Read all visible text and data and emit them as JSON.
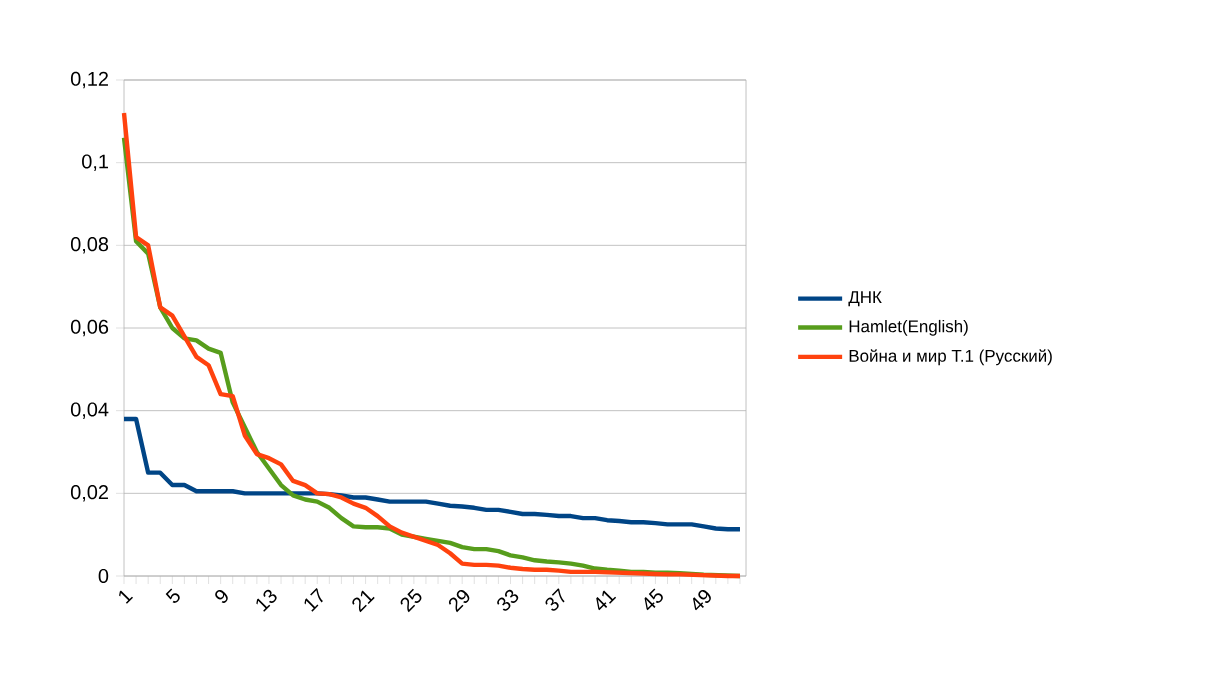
{
  "chart_data": {
    "type": "line",
    "categories": [
      "1",
      null,
      null,
      null,
      "5",
      null,
      null,
      null,
      "9",
      null,
      null,
      null,
      "13",
      null,
      null,
      null,
      "17",
      null,
      null,
      null,
      "21",
      null,
      null,
      null,
      "25",
      null,
      null,
      null,
      "29",
      null,
      null,
      null,
      "33",
      null,
      null,
      null,
      "37",
      null,
      null,
      null,
      "41",
      null,
      null,
      null,
      "45",
      null,
      null,
      null,
      "49",
      null,
      null,
      null
    ],
    "series": [
      {
        "name": "ДНК",
        "color": "#004586",
        "values": [
          0.038,
          0.038,
          0.025,
          0.025,
          0.022,
          0.022,
          0.0205,
          0.0205,
          0.0205,
          0.0205,
          0.02,
          0.02,
          0.02,
          0.02,
          0.02,
          0.02,
          0.02,
          0.0198,
          0.0195,
          0.019,
          0.019,
          0.0185,
          0.018,
          0.018,
          0.018,
          0.018,
          0.0175,
          0.017,
          0.0168,
          0.0165,
          0.016,
          0.016,
          0.0155,
          0.015,
          0.015,
          0.0148,
          0.0145,
          0.0145,
          0.014,
          0.014,
          0.0135,
          0.0133,
          0.013,
          0.013,
          0.0128,
          0.0125,
          0.0125,
          0.0125,
          0.012,
          0.0115,
          0.0113,
          0.0113
        ]
      },
      {
        "name": "Hamlet(English)",
        "color": "#579d1c",
        "values": [
          0.106,
          0.081,
          0.078,
          0.065,
          0.06,
          0.0575,
          0.057,
          0.055,
          0.054,
          0.042,
          0.036,
          0.03,
          0.026,
          0.022,
          0.0195,
          0.0185,
          0.018,
          0.0165,
          0.014,
          0.012,
          0.0118,
          0.0118,
          0.0115,
          0.01,
          0.0095,
          0.009,
          0.0085,
          0.008,
          0.007,
          0.0065,
          0.0065,
          0.006,
          0.005,
          0.0045,
          0.0038,
          0.0035,
          0.0033,
          0.003,
          0.0025,
          0.0018,
          0.0015,
          0.0013,
          0.001,
          0.001,
          0.0008,
          0.0008,
          0.0007,
          0.0005,
          0.0003,
          0.0002,
          0.0001,
          0
        ]
      },
      {
        "name": "Война и мир Т.1 (Русский)",
        "color": "#ff420e",
        "values": [
          0.112,
          0.082,
          0.08,
          0.065,
          0.063,
          0.058,
          0.053,
          0.051,
          0.044,
          0.0435,
          0.034,
          0.0295,
          0.0285,
          0.027,
          0.023,
          0.022,
          0.02,
          0.0198,
          0.019,
          0.0175,
          0.0165,
          0.0145,
          0.012,
          0.0105,
          0.0095,
          0.0085,
          0.0075,
          0.0055,
          0.003,
          0.0027,
          0.0027,
          0.0025,
          0.002,
          0.0017,
          0.0015,
          0.0015,
          0.0013,
          0.001,
          0.001,
          0.001,
          0.0009,
          0.0008,
          0.0007,
          0.0006,
          0.0005,
          0.0004,
          0.0004,
          0.0003,
          0.0002,
          0.0001,
          0,
          0
        ]
      }
    ],
    "ylim": [
      0,
      0.12
    ],
    "yticks": [
      {
        "value": 0,
        "label": "0"
      },
      {
        "value": 0.02,
        "label": "0,02"
      },
      {
        "value": 0.04,
        "label": "0,04"
      },
      {
        "value": 0.06,
        "label": "0,06"
      },
      {
        "value": 0.08,
        "label": "0,08"
      },
      {
        "value": 0.1,
        "label": "0,1"
      },
      {
        "value": 0.12,
        "label": "0,12"
      }
    ],
    "grid": "y",
    "legend": "right",
    "marker": "none",
    "line_style": "solid"
  }
}
